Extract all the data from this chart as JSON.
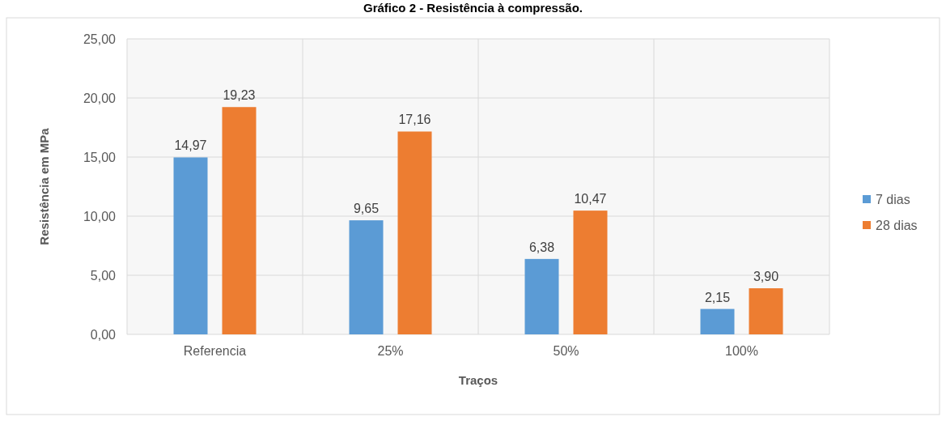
{
  "chart_data": {
    "type": "bar",
    "title": "Gráfico 2 - Resistência à compressão.",
    "xlabel": "Traços",
    "ylabel": "Resistência em MPa",
    "categories": [
      "Referencia",
      "25%",
      "50%",
      "100%"
    ],
    "series": [
      {
        "name": "7 dias",
        "color": "#5b9bd5",
        "values": [
          14.97,
          9.65,
          6.38,
          2.15
        ],
        "value_labels": [
          "14,97",
          "9,65",
          "6,38",
          "2,15"
        ]
      },
      {
        "name": "28 dias",
        "color": "#ed7d31",
        "values": [
          19.23,
          17.16,
          10.47,
          3.9
        ],
        "value_labels": [
          "19,23",
          "17,16",
          "10,47",
          "3,90"
        ]
      }
    ],
    "ylim": [
      0,
      25
    ],
    "yticks": [
      {
        "value": 0,
        "label": "0,00"
      },
      {
        "value": 5,
        "label": "5,00"
      },
      {
        "value": 10,
        "label": "10,00"
      },
      {
        "value": 15,
        "label": "15,00"
      },
      {
        "value": 20,
        "label": "20,00"
      },
      {
        "value": 25,
        "label": "25,00"
      }
    ],
    "grid": true,
    "legend": "right"
  }
}
